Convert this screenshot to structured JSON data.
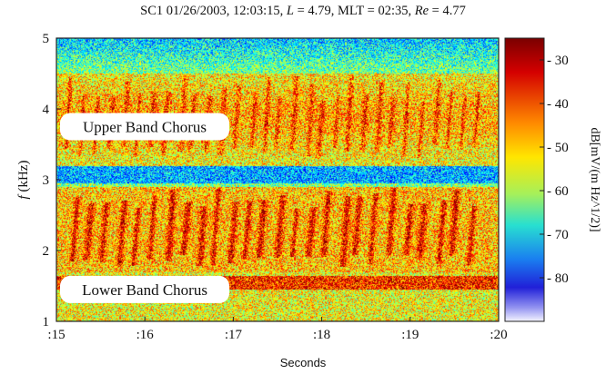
{
  "chart_data": {
    "type": "heatmap",
    "title": {
      "prefix": "SC1 01/26/2003, 12:03:15, ",
      "L_sym": "L",
      "L_val": " = 4.79, MLT = 02:35, ",
      "Re_sym": "Re",
      "Re_val": " = 4.77"
    },
    "xlabel": "Seconds",
    "ylabel": {
      "sym": "f",
      "unit": " (kHz)"
    },
    "xlim": [
      15,
      20
    ],
    "ylim": [
      1,
      5
    ],
    "x_ticks": [
      ":15",
      ":16",
      ":17",
      ":18",
      ":19",
      ":20"
    ],
    "y_ticks": [
      "1",
      "2",
      "3",
      "4",
      "5"
    ],
    "colorbar": {
      "label": "dB[mV/(m Hz^1/2)]",
      "ticks": [
        "30",
        "40",
        "50",
        "60",
        "70",
        "80"
      ],
      "tick_values": [
        30,
        40,
        50,
        60,
        70,
        80
      ],
      "range": [
        25,
        90
      ],
      "reversed_low_is_red": true
    },
    "annotations": [
      {
        "text": "Upper Band Chorus",
        "f_khz": 3.75
      },
      {
        "text": "Lower Band Chorus",
        "f_khz": 1.45
      }
    ],
    "spectral_features": {
      "lower_band_khz": [
        1.7,
        2.9
      ],
      "intense_strip_khz": [
        1.45,
        1.65
      ],
      "gap_khz": [
        2.95,
        3.2
      ],
      "upper_band_khz": [
        3.2,
        4.5
      ]
    }
  }
}
